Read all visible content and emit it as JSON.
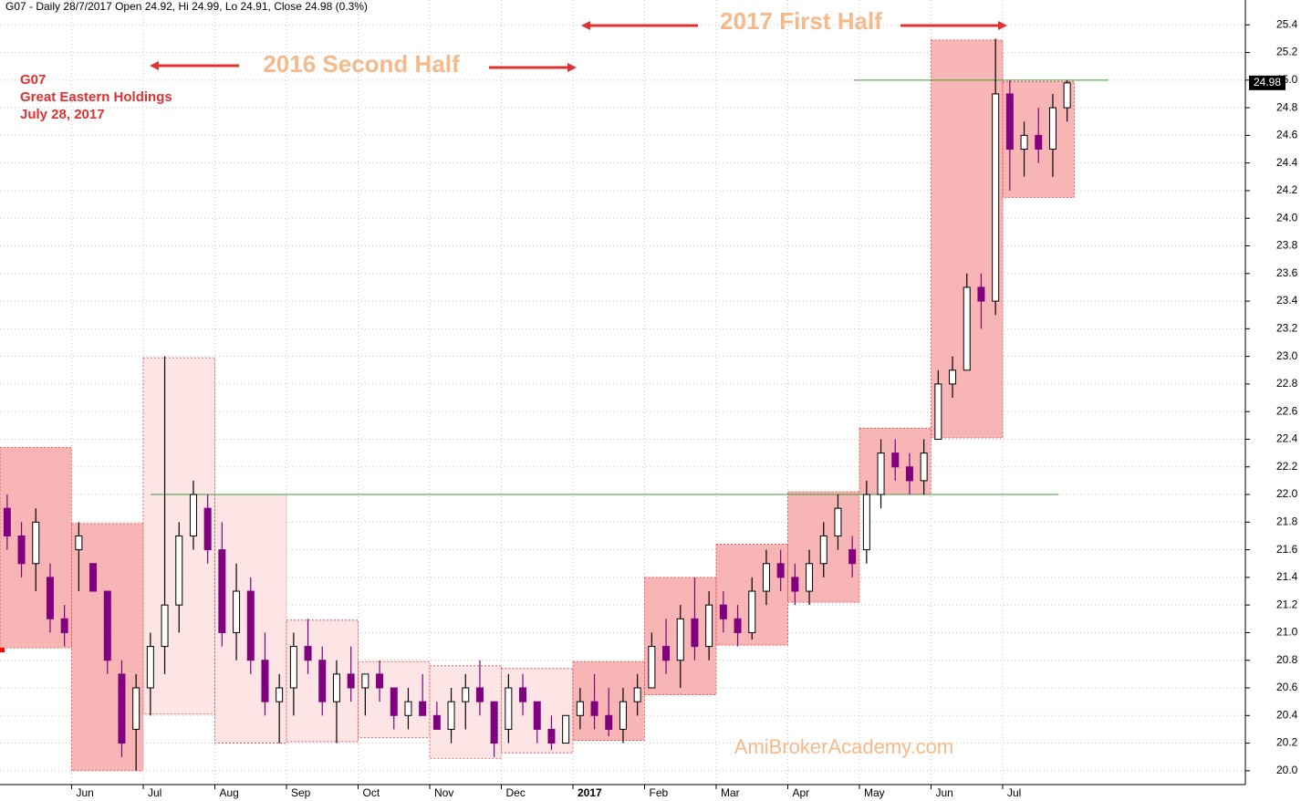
{
  "chart_data": {
    "type": "candlestick",
    "title": "G07 - Daily 28/7/2017 Open 24.92, Hi 24.99, Lo 24.91, Close 24.98 (0.3%)",
    "annotations": {
      "symbol": "G07",
      "name": "Great Eastern Holdings",
      "date": "July 28, 2017",
      "half_2016": "2016 Second Half",
      "half_2017": "2017 First Half",
      "watermark": "AmiBrokerAcademy.com"
    },
    "categories": [
      null,
      "Jun",
      "Jul",
      "Aug",
      "Sep",
      "Oct",
      "Nov",
      "Dec",
      "2017",
      "Feb",
      "Mar",
      "Apr",
      "May",
      "Jun",
      "Jul"
    ],
    "boxes": {
      "low": [
        20.89,
        20.0,
        20.41,
        20.2,
        20.21,
        20.24,
        20.09,
        20.13,
        20.22,
        20.55,
        20.91,
        21.22,
        22.0,
        22.41,
        24.15
      ],
      "high": [
        22.34,
        21.79,
        22.99,
        22.0,
        21.09,
        20.79,
        20.76,
        20.74,
        20.79,
        21.4,
        21.64,
        22.02,
        22.48,
        25.29,
        24.99
      ],
      "colors": [
        "#f7a8a8",
        "#f7a8a8",
        "#fde0e0",
        "#fde0e0",
        "#fde0e0",
        "#fde0e0",
        "#fde0e0",
        "#fde0e0",
        "#f7a8a8",
        "#f7a8a8",
        "#f7a8a8",
        "#f7a8a8",
        "#f7a8a8",
        "#f7a8a8",
        "#f7a8a8"
      ]
    },
    "candles": [
      {
        "open": [
          21.9,
          21.7,
          21.5,
          21.4,
          21.1
        ],
        "high": [
          22.0,
          21.8,
          21.9,
          21.5,
          21.2
        ],
        "low": [
          21.6,
          21.4,
          21.3,
          21.0,
          20.9
        ],
        "close": [
          21.7,
          21.5,
          21.8,
          21.1,
          21.0
        ]
      },
      {
        "open": [
          21.6,
          21.5,
          21.3,
          20.7,
          20.3
        ],
        "high": [
          21.8,
          21.5,
          21.3,
          20.8,
          20.7
        ],
        "low": [
          21.3,
          21.3,
          20.7,
          20.1,
          20.0
        ],
        "close": [
          21.7,
          21.3,
          20.8,
          20.2,
          20.6
        ]
      },
      {
        "open": [
          20.6,
          20.9,
          21.2,
          21.7,
          21.9
        ],
        "high": [
          21.0,
          23.0,
          21.8,
          22.1,
          22.0
        ],
        "low": [
          20.4,
          20.7,
          21.0,
          21.6,
          21.5
        ],
        "close": [
          20.9,
          21.2,
          21.7,
          22.0,
          21.6
        ]
      },
      {
        "open": [
          21.6,
          21.0,
          21.3,
          20.8,
          20.5
        ],
        "high": [
          21.8,
          21.5,
          21.4,
          21.0,
          20.7
        ],
        "low": [
          20.9,
          20.8,
          20.7,
          20.4,
          20.2
        ],
        "close": [
          21.0,
          21.3,
          20.8,
          20.5,
          20.6
        ]
      },
      {
        "open": [
          20.6,
          20.9,
          20.8,
          20.5,
          20.7
        ],
        "high": [
          21.0,
          21.1,
          20.9,
          20.8,
          20.9
        ],
        "low": [
          20.4,
          20.7,
          20.4,
          20.2,
          20.5
        ],
        "close": [
          20.9,
          20.8,
          20.5,
          20.7,
          20.6
        ]
      },
      {
        "open": [
          20.6,
          20.7,
          20.6,
          20.4,
          20.5
        ],
        "high": [
          20.7,
          20.8,
          20.6,
          20.6,
          20.7
        ],
        "low": [
          20.4,
          20.5,
          20.3,
          20.3,
          20.4
        ],
        "close": [
          20.7,
          20.6,
          20.4,
          20.5,
          20.4
        ]
      },
      {
        "open": [
          20.4,
          20.3,
          20.5,
          20.6,
          20.5
        ],
        "high": [
          20.5,
          20.6,
          20.7,
          20.8,
          20.5
        ],
        "low": [
          20.3,
          20.2,
          20.3,
          20.4,
          20.1
        ],
        "close": [
          20.3,
          20.5,
          20.6,
          20.5,
          20.2
        ]
      },
      {
        "open": [
          20.3,
          20.6,
          20.5,
          20.3,
          20.2
        ],
        "high": [
          20.7,
          20.7,
          20.5,
          20.4,
          20.4
        ],
        "low": [
          20.2,
          20.4,
          20.2,
          20.15,
          20.2
        ],
        "close": [
          20.6,
          20.5,
          20.3,
          20.2,
          20.4
        ]
      },
      {
        "open": [
          20.4,
          20.5,
          20.4,
          20.3,
          20.5
        ],
        "high": [
          20.6,
          20.7,
          20.6,
          20.6,
          20.7
        ],
        "low": [
          20.3,
          20.3,
          20.25,
          20.2,
          20.4
        ],
        "close": [
          20.5,
          20.4,
          20.3,
          20.5,
          20.6
        ]
      },
      {
        "open": [
          20.6,
          20.9,
          20.8,
          21.1,
          20.9
        ],
        "high": [
          21.0,
          21.1,
          21.2,
          21.4,
          21.3
        ],
        "low": [
          20.6,
          20.7,
          20.6,
          20.8,
          20.8
        ],
        "close": [
          20.9,
          20.8,
          21.1,
          20.9,
          21.2
        ]
      },
      {
        "open": [
          21.2,
          21.1,
          21.0,
          21.3,
          21.5
        ],
        "high": [
          21.3,
          21.2,
          21.4,
          21.6,
          21.6
        ],
        "low": [
          21.0,
          20.9,
          20.95,
          21.2,
          21.3
        ],
        "close": [
          21.1,
          21.0,
          21.3,
          21.5,
          21.4
        ]
      },
      {
        "open": [
          21.4,
          21.3,
          21.5,
          21.7,
          21.6
        ],
        "high": [
          21.5,
          21.6,
          21.8,
          22.0,
          21.7
        ],
        "low": [
          21.2,
          21.2,
          21.4,
          21.6,
          21.4
        ],
        "close": [
          21.3,
          21.5,
          21.7,
          21.9,
          21.5
        ]
      },
      {
        "open": [
          21.6,
          22.0,
          22.3,
          22.2,
          22.1
        ],
        "high": [
          22.1,
          22.4,
          22.4,
          22.3,
          22.4
        ],
        "low": [
          21.5,
          21.9,
          22.1,
          22.0,
          22.0
        ],
        "close": [
          22.0,
          22.3,
          22.2,
          22.1,
          22.3
        ]
      },
      {
        "open": [
          22.4,
          22.8,
          22.9,
          23.5,
          23.4
        ],
        "high": [
          22.9,
          23.0,
          23.6,
          23.6,
          25.3
        ],
        "low": [
          22.4,
          22.7,
          22.9,
          23.2,
          23.3
        ],
        "close": [
          22.8,
          22.9,
          23.5,
          23.4,
          24.9
        ]
      },
      {
        "open": [
          24.9,
          24.5,
          24.6,
          24.5,
          24.8
        ],
        "high": [
          25.0,
          24.7,
          24.8,
          24.9,
          25.0
        ],
        "low": [
          24.2,
          24.3,
          24.4,
          24.3,
          24.7
        ],
        "close": [
          24.5,
          24.6,
          24.5,
          24.8,
          24.98
        ]
      }
    ],
    "up_color": "#ffffff",
    "down_color": "#800080",
    "level_lines": [
      22.0,
      25.0
    ],
    "level_color": "#3c9a3c",
    "ylim": [
      19.9,
      25.58
    ],
    "yticks": [
      {
        "value": 20,
        "label": "20.0"
      },
      20.2,
      20.4,
      20.6,
      20.8,
      {
        "value": 21,
        "label": "21.0"
      },
      21.2,
      21.4,
      21.6,
      21.8,
      {
        "value": 22,
        "label": "22.0"
      },
      22.2,
      22.4,
      22.6,
      22.8,
      {
        "value": 23,
        "label": "23.0"
      },
      23.2,
      23.4,
      23.6,
      23.8,
      {
        "value": 24,
        "label": "24.0"
      },
      24.2,
      24.4,
      24.6,
      24.8,
      {
        "value": 25,
        "label": "25.0"
      },
      25.2,
      25.4
    ],
    "grid": true
  }
}
